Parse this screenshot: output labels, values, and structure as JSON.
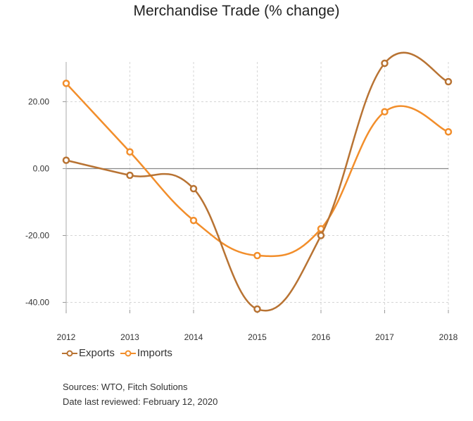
{
  "chart_data": {
    "type": "line",
    "title": "Merchandise Trade (% change)",
    "xlabel": "",
    "ylabel": "",
    "categories": [
      "2012",
      "2013",
      "2014",
      "2015",
      "2016",
      "2017",
      "2018"
    ],
    "y_ticks": [
      "20.00",
      "0.00",
      "-20.00",
      "-40.00"
    ],
    "ylim": [
      -43,
      33
    ],
    "grid": true,
    "legend_position": "bottom-left",
    "series": [
      {
        "name": "Exports",
        "color": "#b87333",
        "values": [
          2.5,
          -2,
          -6,
          -42,
          -20,
          31.5,
          26
        ]
      },
      {
        "name": "Imports",
        "color": "#f28e2b",
        "values": [
          25.5,
          5,
          -15.5,
          -26,
          -18,
          17,
          11
        ]
      }
    ]
  },
  "sources": {
    "line1": "Sources: WTO, Fitch Solutions",
    "line2": "Date last reviewed: February 12, 2020"
  }
}
